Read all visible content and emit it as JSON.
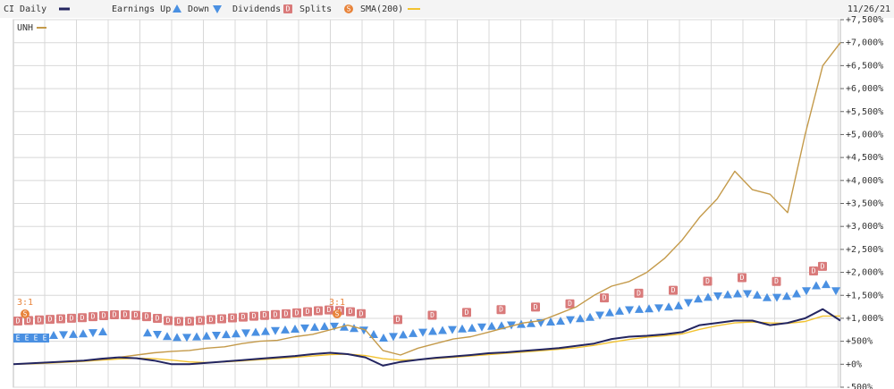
{
  "chart_data": {
    "type": "line",
    "title": "CI Daily",
    "date": "11/26/21",
    "legend": [
      "Earnings Up",
      "Down",
      "Dividends",
      "Splits",
      "SMA(200)"
    ],
    "inner_legend": "UNH",
    "icons": {
      "earnings_up": "A",
      "earnings_down": "V",
      "dividend": "D",
      "split": "S",
      "earnings": "E"
    },
    "splits": [
      "3:1",
      "3:1"
    ],
    "categories": [
      null,
      null,
      null,
      null,
      null,
      null,
      null,
      null,
      null,
      null,
      null,
      null,
      null,
      null,
      null,
      null,
      null,
      null,
      null,
      null,
      null,
      null,
      null,
      null,
      null,
      null,
      null,
      null,
      null,
      null,
      null,
      null,
      null,
      null,
      null,
      null,
      null,
      null,
      null,
      null,
      null,
      null,
      null,
      null,
      null,
      null,
      null,
      null
    ],
    "series": [
      {
        "name": "SMA(200)",
        "color": "#f2c230",
        "values": [
          0,
          10,
          25,
          45,
          65,
          90,
          115,
          130,
          120,
          90,
          50,
          35,
          50,
          75,
          100,
          125,
          150,
          180,
          210,
          220,
          190,
          120,
          90,
          100,
          125,
          150,
          180,
          210,
          240,
          265,
          295,
          325,
          360,
          410,
          480,
          540,
          590,
          620,
          660,
          760,
          840,
          900,
          920,
          900,
          890,
          930,
          1050,
          1050
        ]
      },
      {
        "name": "UNH",
        "color": "#c49a4a",
        "values": [
          0,
          20,
          40,
          60,
          80,
          100,
          150,
          200,
          250,
          280,
          300,
          350,
          380,
          450,
          500,
          520,
          600,
          650,
          750,
          850,
          750,
          300,
          200,
          350,
          450,
          550,
          600,
          700,
          800,
          900,
          950,
          1100,
          1250,
          1500,
          1700,
          1800,
          2000,
          2300,
          2700,
          3200,
          3600,
          4200,
          3800,
          3700,
          3300,
          5000,
          6500,
          7000
        ]
      },
      {
        "name": "CI Daily",
        "color": "#232560",
        "values": [
          0,
          20,
          40,
          60,
          80,
          120,
          150,
          130,
          80,
          0,
          0,
          30,
          60,
          90,
          120,
          150,
          180,
          220,
          250,
          220,
          150,
          -30,
          50,
          100,
          140,
          170,
          200,
          240,
          260,
          290,
          320,
          350,
          400,
          450,
          550,
          600,
          620,
          650,
          700,
          850,
          900,
          950,
          950,
          850,
          900,
          1000,
          1200,
          950
        ]
      }
    ],
    "ylim": [
      -500,
      7500
    ],
    "yticks": [
      {
        "value": -500,
        "label": "-500%"
      },
      {
        "value": 0,
        "label": "+0%"
      },
      {
        "value": 500,
        "label": "+500%"
      },
      {
        "value": 1000,
        "label": "+1,000%"
      },
      {
        "value": 1500,
        "label": "+1,500%"
      },
      {
        "value": 2000,
        "label": "+2,000%"
      },
      {
        "value": 2500,
        "label": "+2,500%"
      },
      {
        "value": 3000,
        "label": "+3,000%"
      },
      {
        "value": 3500,
        "label": "+3,500%"
      },
      {
        "value": 4000,
        "label": "+4,000%"
      },
      {
        "value": 4500,
        "label": "+4,500%"
      },
      {
        "value": 5000,
        "label": "+5,000%"
      },
      {
        "value": 5500,
        "label": "+5,500%"
      },
      {
        "value": 6000,
        "label": "+6,000%"
      },
      {
        "value": 6500,
        "label": "+6,500%"
      },
      {
        "value": 7000,
        "label": "+7,000%"
      },
      {
        "value": 7500,
        "label": "+7,500%"
      }
    ],
    "grid": true
  }
}
